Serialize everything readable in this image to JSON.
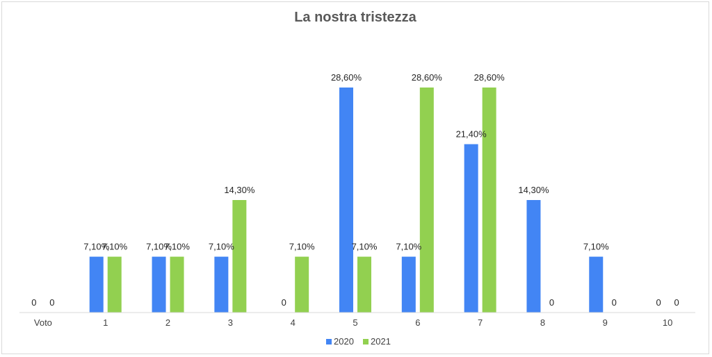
{
  "chart_data": {
    "type": "bar",
    "title": "La nostra tristezza",
    "categories": [
      "Voto",
      "1",
      "2",
      "3",
      "4",
      "5",
      "6",
      "7",
      "8",
      "9",
      "10"
    ],
    "series": [
      {
        "name": "2020",
        "color": "#4285f4",
        "values": [
          0,
          7.1,
          7.1,
          7.1,
          0,
          28.6,
          7.1,
          21.4,
          14.3,
          7.1,
          0
        ],
        "labels": [
          "0",
          "7,10%",
          "7,10%",
          "7,10%",
          "0",
          "28,60%",
          "7,10%",
          "21,40%",
          "14,30%",
          "7,10%",
          "0"
        ]
      },
      {
        "name": "2021",
        "color": "#92d050",
        "values": [
          0,
          7.1,
          7.1,
          14.3,
          7.1,
          7.1,
          28.6,
          28.6,
          0,
          0,
          0
        ],
        "labels": [
          "0",
          "7,10%",
          "7,10%",
          "14,30%",
          "7,10%",
          "7,10%",
          "28,60%",
          "28,60%",
          "0",
          "0",
          "0"
        ]
      }
    ],
    "ylim": [
      0,
      28.6
    ],
    "grid": false,
    "legend": "bottom-center"
  }
}
